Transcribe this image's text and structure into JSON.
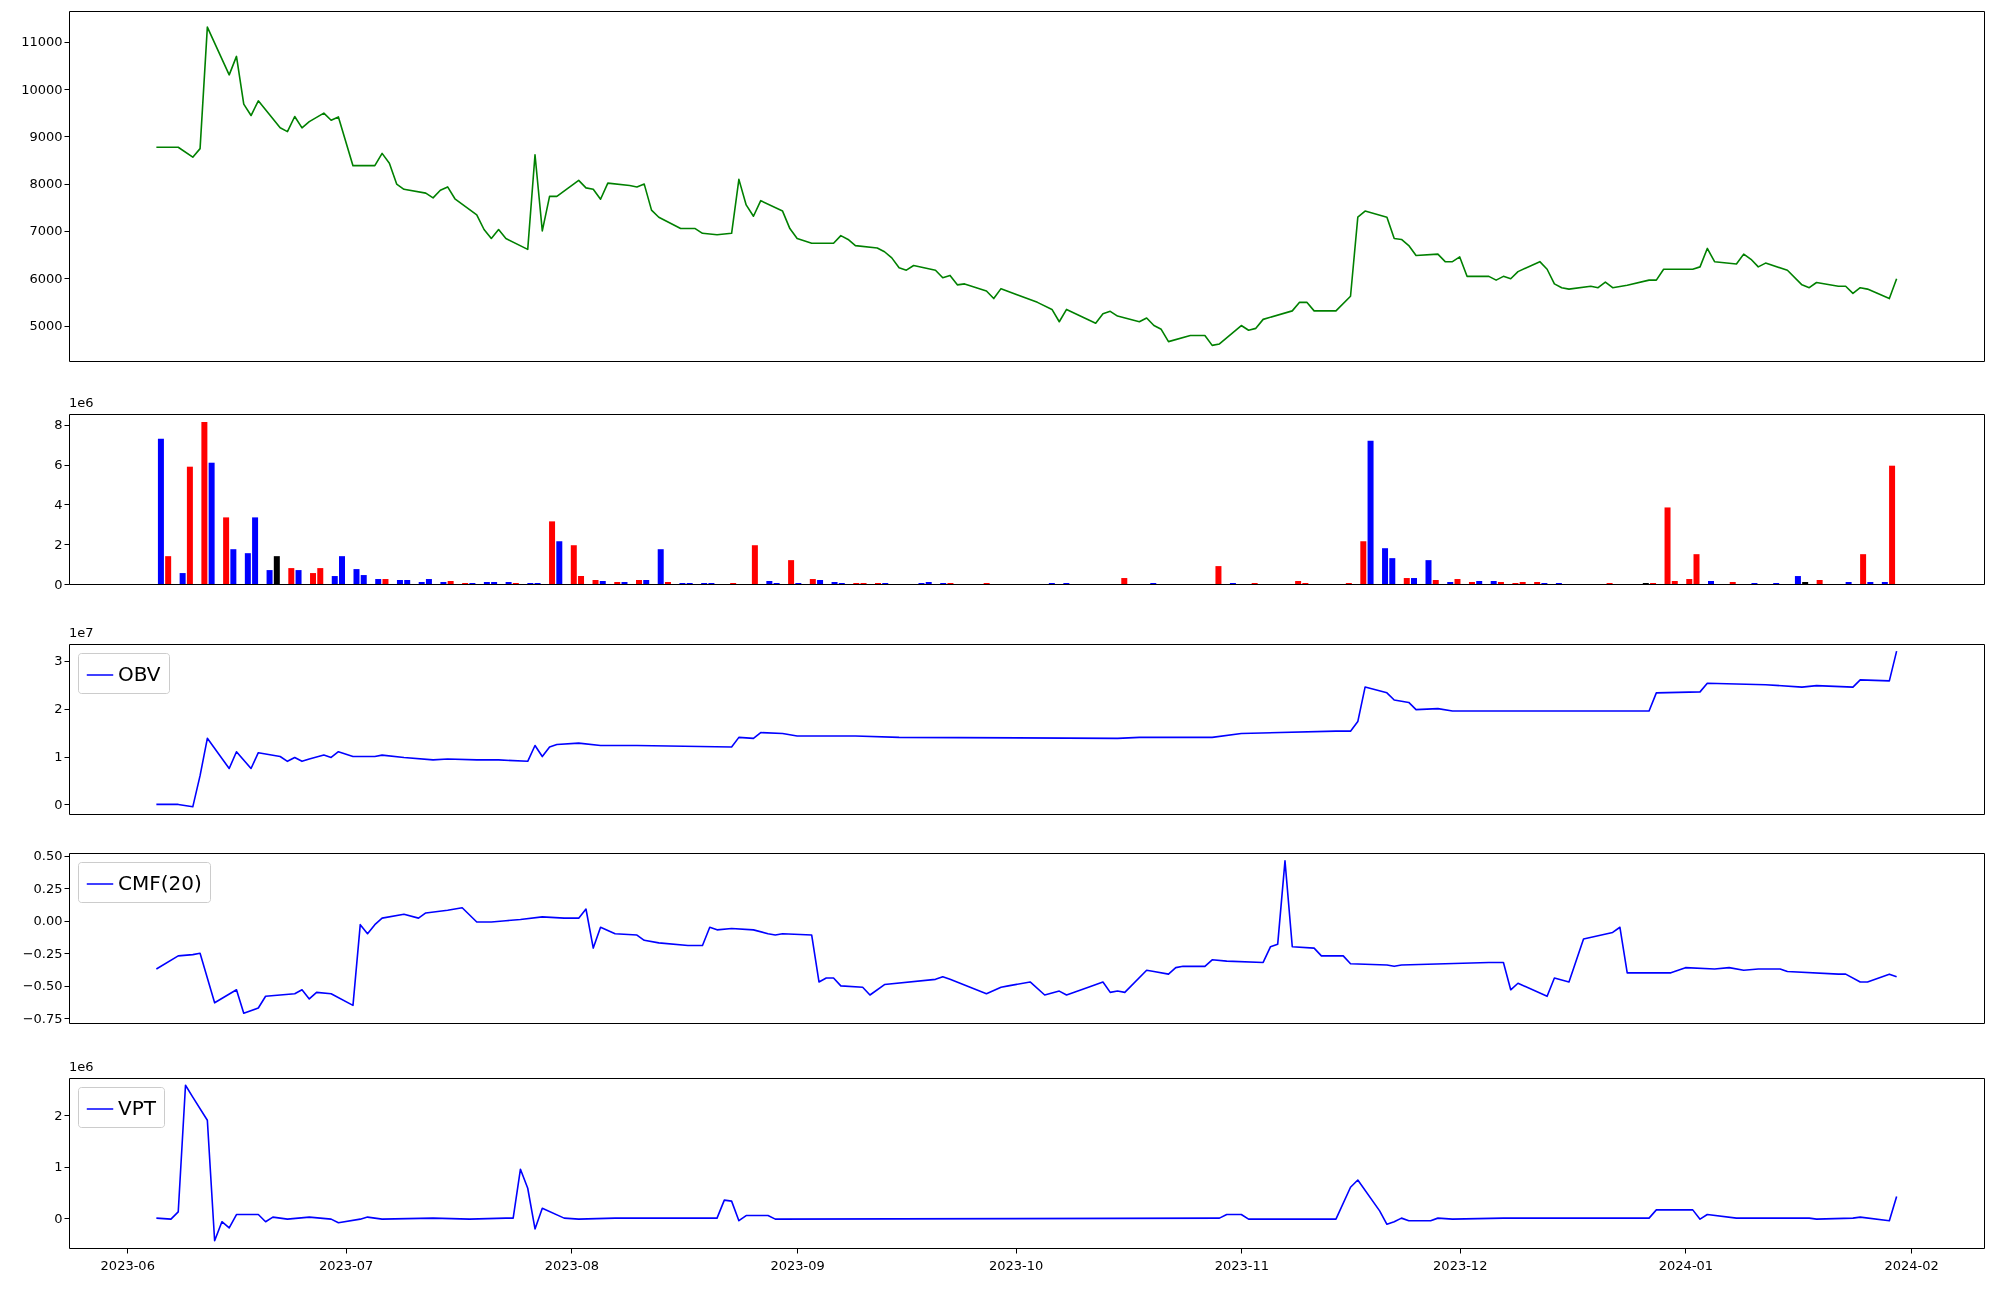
{
  "chart_data": [
    {
      "type": "line",
      "xlim": [
        "2023-05-24",
        "2024-02-11"
      ],
      "xticks": [
        "2023-06",
        "2023-07",
        "2023-08",
        "2023-09",
        "2023-10",
        "2023-11",
        "2023-12",
        "2024-01",
        "2024-02"
      ],
      "ylim": [
        4250,
        11650
      ],
      "yticks": [
        5000,
        6000,
        7000,
        8000,
        9000,
        10000,
        11000
      ],
      "tick_labels": "y",
      "series": [
        {
          "color": "#008000",
          "x": [
            "2023-06-05",
            "2023-06-08",
            "2023-06-10",
            "2023-06-11",
            "2023-06-12",
            "2023-06-15",
            "2023-06-16",
            "2023-06-17",
            "2023-06-18",
            "2023-06-19",
            "2023-06-22",
            "2023-06-23",
            "2023-06-24",
            "2023-06-25",
            "2023-06-26",
            "2023-06-28",
            "2023-06-29",
            "2023-06-30",
            "2023-07-02",
            "2023-07-05",
            "2023-07-06",
            "2023-07-07",
            "2023-07-08",
            "2023-07-09",
            "2023-07-12",
            "2023-07-13",
            "2023-07-14",
            "2023-07-15",
            "2023-07-16",
            "2023-07-19",
            "2023-07-20",
            "2023-07-21",
            "2023-07-22",
            "2023-07-23",
            "2023-07-26",
            "2023-07-27",
            "2023-07-28",
            "2023-07-29",
            "2023-07-30",
            "2023-08-02",
            "2023-08-03",
            "2023-08-04",
            "2023-08-05",
            "2023-08-06",
            "2023-08-09",
            "2023-08-10",
            "2023-08-11",
            "2023-08-12",
            "2023-08-13",
            "2023-08-16",
            "2023-08-18",
            "2023-08-19",
            "2023-08-21",
            "2023-08-23",
            "2023-08-24",
            "2023-08-25",
            "2023-08-26",
            "2023-08-27",
            "2023-08-30",
            "2023-08-31",
            "2023-09-01",
            "2023-09-03",
            "2023-09-06",
            "2023-09-07",
            "2023-09-08",
            "2023-09-09",
            "2023-09-12",
            "2023-09-13",
            "2023-09-14",
            "2023-09-15",
            "2023-09-16",
            "2023-09-17",
            "2023-09-20",
            "2023-09-21",
            "2023-09-22",
            "2023-09-23",
            "2023-09-24",
            "2023-09-27",
            "2023-09-28",
            "2023-09-29",
            "2023-10-04",
            "2023-10-06",
            "2023-10-07",
            "2023-10-08",
            "2023-10-12",
            "2023-10-13",
            "2023-10-14",
            "2023-10-15",
            "2023-10-18",
            "2023-10-19",
            "2023-10-20",
            "2023-10-21",
            "2023-10-22",
            "2023-10-25",
            "2023-10-27",
            "2023-10-28",
            "2023-10-29",
            "2023-11-01",
            "2023-11-02",
            "2023-11-03",
            "2023-11-04",
            "2023-11-08",
            "2023-11-09",
            "2023-11-10",
            "2023-11-11",
            "2023-11-14",
            "2023-11-16",
            "2023-11-17",
            "2023-11-18",
            "2023-11-21",
            "2023-11-22",
            "2023-11-23",
            "2023-11-24",
            "2023-11-25",
            "2023-11-28",
            "2023-11-29",
            "2023-11-30",
            "2023-12-01",
            "2023-12-02",
            "2023-12-05",
            "2023-12-06",
            "2023-12-07",
            "2023-12-08",
            "2023-12-09",
            "2023-12-12",
            "2023-12-13",
            "2023-12-14",
            "2023-12-15",
            "2023-12-16",
            "2023-12-19",
            "2023-12-20",
            "2023-12-21",
            "2023-12-22",
            "2023-12-24",
            "2023-12-27",
            "2023-12-28",
            "2023-12-29",
            "2024-01-02",
            "2024-01-03",
            "2024-01-04",
            "2024-01-05",
            "2024-01-08",
            "2024-01-09",
            "2024-01-10",
            "2024-01-11",
            "2024-01-12",
            "2024-01-15",
            "2024-01-17",
            "2024-01-18",
            "2024-01-19",
            "2024-01-22",
            "2024-01-23",
            "2024-01-24",
            "2024-01-25",
            "2024-01-26",
            "2024-01-29",
            "2024-01-30"
          ],
          "values": [
            8770,
            8770,
            8560,
            8740,
            11310,
            10300,
            10690,
            9680,
            9440,
            9750,
            9180,
            9100,
            9420,
            9180,
            9310,
            9490,
            9340,
            9410,
            8380,
            8380,
            8640,
            8430,
            7990,
            7880,
            7800,
            7700,
            7860,
            7930,
            7680,
            7340,
            7030,
            6840,
            7030,
            6840,
            6610,
            8610,
            7000,
            7730,
            7730,
            8070,
            7910,
            7880,
            7670,
            8010,
            7960,
            7930,
            7990,
            7440,
            7290,
            7050,
            7050,
            6950,
            6920,
            6950,
            8090,
            7550,
            7310,
            7640,
            7420,
            7050,
            6840,
            6740,
            6740,
            6900,
            6820,
            6690,
            6640,
            6560,
            6430,
            6220,
            6170,
            6270,
            6170,
            6010,
            6060,
            5860,
            5880,
            5730,
            5570,
            5780,
            5490,
            5340,
            5080,
            5340,
            5050,
            5250,
            5300,
            5200,
            5080,
            5160,
            5000,
            4920,
            4660,
            4790,
            4790,
            4580,
            4610,
            5000,
            4900,
            4940,
            5130,
            5310,
            5490,
            5490,
            5310,
            5310,
            5620,
            7290,
            7420,
            7290,
            6840,
            6820,
            6690,
            6480,
            6510,
            6350,
            6350,
            6450,
            6040,
            6040,
            5960,
            6040,
            5990,
            6140,
            6350,
            6190,
            5880,
            5800,
            5770,
            5830,
            5800,
            5920,
            5800,
            5850,
            5960,
            5960,
            6190,
            6190,
            6240,
            6630,
            6350,
            6300,
            6510,
            6400,
            6240,
            6320,
            6170,
            5860,
            5800,
            5910,
            5830,
            5830,
            5680,
            5800,
            5770,
            5570,
            5990
          ]
        }
      ]
    },
    {
      "type": "bar",
      "xlim": [
        "2023-05-24",
        "2024-02-11"
      ],
      "xticks": [
        "2023-06",
        "2023-07",
        "2023-08",
        "2023-09",
        "2023-10",
        "2023-11",
        "2023-12",
        "2024-01",
        "2024-02"
      ],
      "ylim": [
        0,
        8.55
      ],
      "yticks": [
        0,
        2,
        4,
        6,
        8
      ],
      "tick_labels": "y",
      "annotations": [
        "1e6"
      ],
      "series": [
        {
          "x": [
            "2023-06-05",
            "2023-06-06",
            "2023-06-08",
            "2023-06-09",
            "2023-06-11",
            "2023-06-12",
            "2023-06-14",
            "2023-06-15",
            "2023-06-17",
            "2023-06-18",
            "2023-06-20",
            "2023-06-21",
            "2023-06-23",
            "2023-06-24",
            "2023-06-26",
            "2023-06-27",
            "2023-06-29",
            "2023-06-30",
            "2023-07-02",
            "2023-07-03",
            "2023-07-05",
            "2023-07-06",
            "2023-07-08",
            "2023-07-09",
            "2023-07-11",
            "2023-07-12",
            "2023-07-14",
            "2023-07-15",
            "2023-07-17",
            "2023-07-18",
            "2023-07-20",
            "2023-07-21",
            "2023-07-23",
            "2023-07-24",
            "2023-07-26",
            "2023-07-27",
            "2023-07-29",
            "2023-07-30",
            "2023-08-01",
            "2023-08-02",
            "2023-08-04",
            "2023-08-05",
            "2023-08-07",
            "2023-08-08",
            "2023-08-10",
            "2023-08-11",
            "2023-08-13",
            "2023-08-14",
            "2023-08-16",
            "2023-08-17",
            "2023-08-19",
            "2023-08-20",
            "2023-08-23",
            "2023-08-26",
            "2023-08-28",
            "2023-08-29",
            "2023-08-31",
            "2023-09-01",
            "2023-09-03",
            "2023-09-04",
            "2023-09-06",
            "2023-09-07",
            "2023-09-09",
            "2023-09-10",
            "2023-09-12",
            "2023-09-13",
            "2023-09-18",
            "2023-09-19",
            "2023-09-21",
            "2023-09-22",
            "2023-09-27",
            "2023-10-06",
            "2023-10-08",
            "2023-10-16",
            "2023-10-20",
            "2023-10-29",
            "2023-10-31",
            "2023-11-03",
            "2023-11-09",
            "2023-11-10",
            "2023-11-16",
            "2023-11-18",
            "2023-11-19",
            "2023-11-21",
            "2023-11-22",
            "2023-11-24",
            "2023-11-25",
            "2023-11-27",
            "2023-11-28",
            "2023-11-30",
            "2023-12-01",
            "2023-12-03",
            "2023-12-04",
            "2023-12-06",
            "2023-12-07",
            "2023-12-09",
            "2023-12-10",
            "2023-12-12",
            "2023-12-13",
            "2023-12-15",
            "2023-12-22",
            "2023-12-27",
            "2023-12-28",
            "2023-12-30",
            "2023-12-31",
            "2024-01-02",
            "2024-01-03",
            "2024-01-05",
            "2024-01-08",
            "2024-01-11",
            "2024-01-14",
            "2024-01-17",
            "2024-01-18",
            "2024-01-20",
            "2024-01-24",
            "2024-01-26",
            "2024-01-27",
            "2024-01-29",
            "2024-01-30"
          ],
          "values": [
            7.3,
            1.4,
            0.55,
            5.9,
            8.15,
            6.1,
            3.35,
            1.75,
            1.55,
            3.35,
            0.7,
            1.4,
            0.8,
            0.7,
            0.55,
            0.8,
            0.4,
            1.4,
            0.75,
            0.45,
            0.25,
            0.25,
            0.2,
            0.2,
            0.1,
            0.25,
            0.1,
            0.15,
            0.05,
            0.05,
            0.1,
            0.1,
            0.1,
            0.05,
            0.05,
            0.05,
            3.15,
            2.15,
            1.95,
            0.4,
            0.2,
            0.15,
            0.1,
            0.1,
            0.2,
            0.2,
            1.75,
            0.1,
            0.05,
            0.05,
            0.05,
            0.05,
            0.05,
            1.95,
            0.15,
            0.05,
            1.2,
            0.05,
            0.25,
            0.2,
            0.1,
            0.05,
            0.05,
            0.05,
            0.05,
            0.05,
            0.05,
            0.1,
            0.05,
            0.05,
            0.05,
            0.05,
            0.05,
            0.3,
            0.05,
            0.9,
            0.05,
            0.05,
            0.15,
            0.05,
            0.05,
            2.15,
            7.2,
            1.8,
            1.3,
            0.3,
            0.3,
            1.2,
            0.2,
            0.1,
            0.25,
            0.1,
            0.15,
            0.15,
            0.1,
            0.05,
            0.1,
            0.1,
            0.05,
            0.05,
            0.05,
            0.05,
            0.05,
            3.85,
            0.15,
            0.25,
            1.5,
            0.15,
            0.1,
            0.05,
            0.05,
            0.4,
            0.1,
            0.2,
            0.1,
            1.5,
            0.1,
            0.1,
            5.95
          ],
          "colors": [
            "#0000ff",
            "#ff0000",
            "#0000ff",
            "#ff0000",
            "#ff0000",
            "#0000ff",
            "#ff0000",
            "#0000ff",
            "#0000ff",
            "#0000ff",
            "#0000ff",
            "#000000",
            "#ff0000",
            "#0000ff",
            "#ff0000",
            "#ff0000",
            "#0000ff",
            "#0000ff",
            "#0000ff",
            "#0000ff",
            "#0000ff",
            "#ff0000",
            "#0000ff",
            "#0000ff",
            "#0000ff",
            "#0000ff",
            "#0000ff",
            "#ff0000",
            "#ff0000",
            "#0000ff",
            "#0000ff",
            "#0000ff",
            "#0000ff",
            "#ff0000",
            "#0000ff",
            "#0000ff",
            "#ff0000",
            "#0000ff",
            "#ff0000",
            "#ff0000",
            "#ff0000",
            "#0000ff",
            "#ff0000",
            "#0000ff",
            "#ff0000",
            "#0000ff",
            "#0000ff",
            "#ff0000",
            "#0000ff",
            "#0000ff",
            "#0000ff",
            "#0000ff",
            "#ff0000",
            "#ff0000",
            "#0000ff",
            "#0000ff",
            "#ff0000",
            "#0000ff",
            "#ff0000",
            "#0000ff",
            "#0000ff",
            "#0000ff",
            "#ff0000",
            "#ff0000",
            "#ff0000",
            "#0000ff",
            "#0000ff",
            "#0000ff",
            "#0000ff",
            "#ff0000",
            "#ff0000",
            "#0000ff",
            "#0000ff",
            "#ff0000",
            "#0000ff",
            "#ff0000",
            "#0000ff",
            "#ff0000",
            "#ff0000",
            "#ff0000",
            "#ff0000",
            "#ff0000",
            "#0000ff",
            "#0000ff",
            "#0000ff",
            "#ff0000",
            "#0000ff",
            "#0000ff",
            "#ff0000",
            "#0000ff",
            "#ff0000",
            "#ff0000",
            "#0000ff",
            "#0000ff",
            "#ff0000",
            "#ff0000",
            "#ff0000",
            "#ff0000",
            "#0000ff",
            "#0000ff",
            "#ff0000",
            "#000000",
            "#ff0000",
            "#ff0000",
            "#ff0000",
            "#ff0000",
            "#ff0000",
            "#0000ff",
            "#ff0000",
            "#0000ff",
            "#0000ff",
            "#0000ff",
            "#000000",
            "#ff0000",
            "#0000ff",
            "#ff0000",
            "#0000ff",
            "#0000ff",
            "#ff0000"
          ]
        }
      ]
    },
    {
      "type": "line",
      "xlim": [
        "2023-05-24",
        "2024-02-11"
      ],
      "xticks": [
        "2023-06",
        "2023-07",
        "2023-08",
        "2023-09",
        "2023-10",
        "2023-11",
        "2023-12",
        "2024-01",
        "2024-02"
      ],
      "ylim": [
        -0.2,
        3.35
      ],
      "yticks": [
        0,
        1,
        2,
        3
      ],
      "tick_labels": "y",
      "legend": "top left",
      "annotations": [
        "1e7"
      ],
      "series": [
        {
          "name": "OBV",
          "color": "#0000ff",
          "x": [
            "2023-06-05",
            "2023-06-08",
            "2023-06-10",
            "2023-06-11",
            "2023-06-12",
            "2023-06-15",
            "2023-06-16",
            "2023-06-18",
            "2023-06-19",
            "2023-06-22",
            "2023-06-23",
            "2023-06-24",
            "2023-06-25",
            "2023-06-26",
            "2023-06-28",
            "2023-06-29",
            "2023-06-30",
            "2023-07-02",
            "2023-07-05",
            "2023-07-06",
            "2023-07-09",
            "2023-07-13",
            "2023-07-15",
            "2023-07-19",
            "2023-07-22",
            "2023-07-26",
            "2023-07-27",
            "2023-07-28",
            "2023-07-29",
            "2023-07-30",
            "2023-08-02",
            "2023-08-05",
            "2023-08-10",
            "2023-08-23",
            "2023-08-24",
            "2023-08-26",
            "2023-08-27",
            "2023-08-30",
            "2023-09-01",
            "2023-09-09",
            "2023-09-15",
            "2023-10-15",
            "2023-10-18",
            "2023-10-28",
            "2023-11-01",
            "2023-11-14",
            "2023-11-16",
            "2023-11-17",
            "2023-11-18",
            "2023-11-21",
            "2023-11-22",
            "2023-11-24",
            "2023-11-25",
            "2023-11-28",
            "2023-11-30",
            "2023-12-02",
            "2023-12-27",
            "2023-12-28",
            "2024-01-03",
            "2024-01-04",
            "2024-01-12",
            "2024-01-17",
            "2024-01-19",
            "2024-01-24",
            "2024-01-25",
            "2024-01-29",
            "2024-01-30"
          ],
          "values": [
            0,
            0,
            -0.05,
            0.6,
            1.38,
            0.75,
            1.1,
            0.75,
            1.08,
            1.0,
            0.9,
            0.98,
            0.9,
            0.95,
            1.03,
            0.98,
            1.1,
            1.0,
            1.0,
            1.03,
            0.98,
            0.93,
            0.95,
            0.93,
            0.93,
            0.9,
            1.23,
            1.0,
            1.2,
            1.25,
            1.28,
            1.23,
            1.23,
            1.2,
            1.4,
            1.38,
            1.5,
            1.48,
            1.43,
            1.43,
            1.4,
            1.38,
            1.4,
            1.4,
            1.48,
            1.53,
            1.53,
            1.73,
            2.45,
            2.33,
            2.18,
            2.13,
            1.98,
            2.0,
            1.95,
            1.95,
            1.95,
            2.33,
            2.35,
            2.53,
            2.5,
            2.45,
            2.48,
            2.45,
            2.6,
            2.58,
            3.2
          ]
        }
      ]
    },
    {
      "type": "line",
      "xlim": [
        "2023-05-24",
        "2024-02-11"
      ],
      "xticks": [
        "2023-06",
        "2023-07",
        "2023-08",
        "2023-09",
        "2023-10",
        "2023-11",
        "2023-12",
        "2024-01",
        "2024-02"
      ],
      "ylim": [
        -0.785,
        0.52
      ],
      "yticks": [
        {
          "value": -0.75,
          "label": "−0.75"
        },
        {
          "value": -0.5,
          "label": "−0.50"
        },
        {
          "value": -0.25,
          "label": "−0.25"
        },
        {
          "value": 0,
          "label": "0.00"
        },
        {
          "value": 0.25,
          "label": "0.25"
        },
        {
          "value": 0.5,
          "label": "0.50"
        }
      ],
      "tick_labels": "y",
      "legend": "top left",
      "series": [
        {
          "name": "CMF(20)",
          "color": "#0000ff",
          "x": [
            "2023-06-05",
            "2023-06-08",
            "2023-06-10",
            "2023-06-11",
            "2023-06-13",
            "2023-06-16",
            "2023-06-17",
            "2023-06-19",
            "2023-06-20",
            "2023-06-24",
            "2023-06-25",
            "2023-06-26",
            "2023-06-27",
            "2023-06-29",
            "2023-07-02",
            "2023-07-03",
            "2023-07-04",
            "2023-07-05",
            "2023-07-06",
            "2023-07-09",
            "2023-07-11",
            "2023-07-12",
            "2023-07-15",
            "2023-07-17",
            "2023-07-19",
            "2023-07-21",
            "2023-07-23",
            "2023-07-25",
            "2023-07-28",
            "2023-07-31",
            "2023-08-02",
            "2023-08-03",
            "2023-08-04",
            "2023-08-05",
            "2023-08-07",
            "2023-08-10",
            "2023-08-11",
            "2023-08-13",
            "2023-08-17",
            "2023-08-19",
            "2023-08-20",
            "2023-08-21",
            "2023-08-23",
            "2023-08-26",
            "2023-08-28",
            "2023-08-29",
            "2023-08-30",
            "2023-09-03",
            "2023-09-04",
            "2023-09-05",
            "2023-09-06",
            "2023-09-07",
            "2023-09-10",
            "2023-09-11",
            "2023-09-13",
            "2023-09-20",
            "2023-09-21",
            "2023-09-22",
            "2023-09-27",
            "2023-09-29",
            "2023-09-30",
            "2023-10-03",
            "2023-10-05",
            "2023-10-07",
            "2023-10-08",
            "2023-10-11",
            "2023-10-13",
            "2023-10-14",
            "2023-10-15",
            "2023-10-16",
            "2023-10-19",
            "2023-10-20",
            "2023-10-22",
            "2023-10-23",
            "2023-10-24",
            "2023-10-27",
            "2023-10-28",
            "2023-10-30",
            "2023-11-04",
            "2023-11-05",
            "2023-11-06",
            "2023-11-07",
            "2023-11-08",
            "2023-11-11",
            "2023-11-12",
            "2023-11-15",
            "2023-11-16",
            "2023-11-21",
            "2023-11-22",
            "2023-11-23",
            "2023-11-29",
            "2023-12-05",
            "2023-12-07",
            "2023-12-08",
            "2023-12-09",
            "2023-12-13",
            "2023-12-14",
            "2023-12-16",
            "2023-12-18",
            "2023-12-22",
            "2023-12-23",
            "2023-12-24",
            "2023-12-28",
            "2023-12-30",
            "2024-01-01",
            "2024-01-05",
            "2024-01-07",
            "2024-01-09",
            "2024-01-11",
            "2024-01-14",
            "2024-01-15",
            "2024-01-22",
            "2024-01-23",
            "2024-01-25",
            "2024-01-26",
            "2024-01-29",
            "2024-01-30"
          ],
          "values": [
            -0.37,
            -0.27,
            -0.26,
            -0.25,
            -0.63,
            -0.53,
            -0.71,
            -0.67,
            -0.58,
            -0.56,
            -0.53,
            -0.6,
            -0.55,
            -0.56,
            -0.65,
            -0.03,
            -0.1,
            -0.03,
            0.02,
            0.05,
            0.02,
            0.06,
            0.08,
            0.1,
            -0.01,
            -0.01,
            0,
            0.01,
            0.03,
            0.02,
            0.02,
            0.09,
            -0.21,
            -0.05,
            -0.1,
            -0.11,
            -0.15,
            -0.17,
            -0.19,
            -0.19,
            -0.05,
            -0.07,
            -0.06,
            -0.07,
            -0.1,
            -0.11,
            -0.1,
            -0.11,
            -0.47,
            -0.44,
            -0.44,
            -0.5,
            -0.51,
            -0.57,
            -0.49,
            -0.45,
            -0.43,
            -0.45,
            -0.56,
            -0.51,
            -0.5,
            -0.47,
            -0.57,
            -0.54,
            -0.57,
            -0.51,
            -0.47,
            -0.55,
            -0.54,
            -0.55,
            -0.38,
            -0.39,
            -0.41,
            -0.36,
            -0.35,
            -0.35,
            -0.3,
            -0.31,
            -0.32,
            -0.2,
            -0.18,
            0.46,
            -0.2,
            -0.21,
            -0.27,
            -0.27,
            -0.33,
            -0.34,
            -0.35,
            -0.34,
            -0.33,
            -0.32,
            -0.32,
            -0.53,
            -0.48,
            -0.58,
            -0.44,
            -0.47,
            -0.14,
            -0.09,
            -0.05,
            -0.4,
            -0.4,
            -0.4,
            -0.36,
            -0.37,
            -0.36,
            -0.38,
            -0.37,
            -0.37,
            -0.39,
            -0.41,
            -0.41,
            -0.47,
            -0.47,
            -0.41,
            -0.43
          ]
        }
      ]
    },
    {
      "type": "line",
      "xlim": [
        "2023-05-24",
        "2024-02-11"
      ],
      "xticks": [
        "2023-06",
        "2023-07",
        "2023-08",
        "2023-09",
        "2023-10",
        "2023-11",
        "2023-12",
        "2024-01",
        "2024-02"
      ],
      "ylim": [
        -0.58,
        2.72
      ],
      "yticks": [
        0,
        1,
        2
      ],
      "legend": "top left",
      "annotations": [
        "1e6"
      ],
      "series": [
        {
          "name": "VPT",
          "color": "#0000ff",
          "x": [
            "2023-06-05",
            "2023-06-07",
            "2023-06-08",
            "2023-06-09",
            "2023-06-10",
            "2023-06-12",
            "2023-06-13",
            "2023-06-14",
            "2023-06-15",
            "2023-06-16",
            "2023-06-19",
            "2023-06-20",
            "2023-06-21",
            "2023-06-23",
            "2023-06-26",
            "2023-06-29",
            "2023-06-30",
            "2023-07-03",
            "2023-07-04",
            "2023-07-06",
            "2023-07-13",
            "2023-07-18",
            "2023-07-23",
            "2023-07-24",
            "2023-07-25",
            "2023-07-26",
            "2023-07-27",
            "2023-07-28",
            "2023-07-31",
            "2023-08-02",
            "2023-08-07",
            "2023-08-21",
            "2023-08-22",
            "2023-08-23",
            "2023-08-24",
            "2023-08-25",
            "2023-08-28",
            "2023-08-29",
            "2023-10-29",
            "2023-10-30",
            "2023-11-01",
            "2023-11-02",
            "2023-11-14",
            "2023-11-16",
            "2023-11-17",
            "2023-11-20",
            "2023-11-21",
            "2023-11-22",
            "2023-11-23",
            "2023-11-24",
            "2023-11-27",
            "2023-11-28",
            "2023-11-30",
            "2023-12-07",
            "2023-12-27",
            "2023-12-28",
            "2024-01-02",
            "2024-01-03",
            "2024-01-04",
            "2024-01-08",
            "2024-01-17",
            "2024-01-18",
            "2024-01-19",
            "2024-01-24",
            "2024-01-25",
            "2024-01-29",
            "2024-01-30"
          ],
          "values": [
            0,
            -0.02,
            0.12,
            2.58,
            2.35,
            1.9,
            -0.44,
            -0.07,
            -0.19,
            0.07,
            0.07,
            -0.07,
            0.02,
            -0.02,
            0.02,
            -0.02,
            -0.09,
            -0.02,
            0.02,
            -0.02,
            0,
            -0.02,
            0,
            0,
            0.95,
            0.58,
            -0.21,
            0.19,
            0,
            -0.02,
            0,
            0,
            0.35,
            0.33,
            -0.05,
            0.05,
            0.05,
            -0.02,
            0,
            0.07,
            0.07,
            -0.02,
            -0.02,
            0.6,
            0.74,
            0.14,
            -0.12,
            -0.07,
            0,
            -0.05,
            -0.05,
            0,
            -0.02,
            0,
            0,
            0.16,
            0.16,
            -0.02,
            0.07,
            0,
            0,
            0,
            -0.02,
            0,
            0.02,
            -0.05,
            0.42
          ]
        }
      ]
    }
  ]
}
